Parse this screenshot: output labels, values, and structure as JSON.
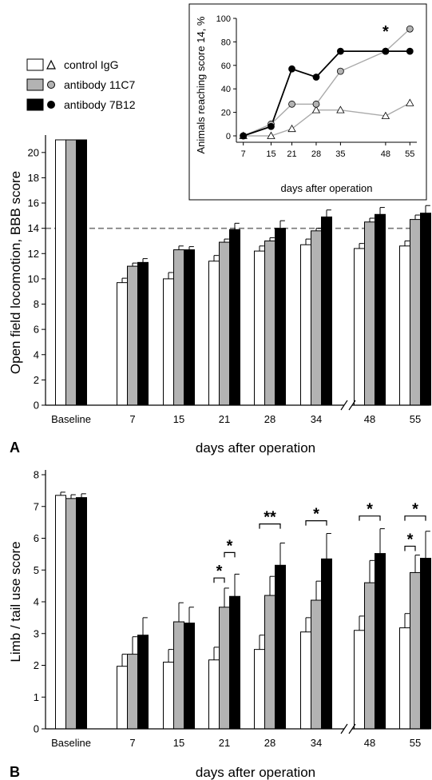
{
  "legend": {
    "items": [
      {
        "label": "control IgG",
        "fill": "#ffffff",
        "marker": "triangle"
      },
      {
        "label": "antibody 11C7",
        "fill": "#b3b3b3",
        "marker": "circle"
      },
      {
        "label": "antibody 7B12",
        "fill": "#000000",
        "marker": "circle"
      }
    ]
  },
  "chart_data": [
    {
      "id": "A",
      "panel_label": "A",
      "type": "bar",
      "ylabel": "Open field locomotion, BBB score",
      "xlabel": "days after operation",
      "ylim": [
        0,
        21
      ],
      "yticks": [
        0,
        2,
        4,
        6,
        8,
        10,
        12,
        14,
        16,
        18,
        20
      ],
      "categories": [
        "Baseline",
        "7",
        "15",
        "21",
        "28",
        "34",
        "48",
        "55"
      ],
      "axis_break_between": [
        "34",
        "48"
      ],
      "reference_line": 14,
      "series": [
        {
          "name": "control IgG",
          "values": [
            21.0,
            9.7,
            10.0,
            11.4,
            12.2,
            12.7,
            12.4,
            12.6
          ],
          "errors": [
            0,
            0.35,
            0.5,
            0.45,
            0.4,
            0.45,
            0.4,
            0.4
          ]
        },
        {
          "name": "antibody 11C7",
          "values": [
            21.0,
            11.0,
            12.3,
            12.9,
            13.0,
            13.8,
            14.5,
            14.7
          ],
          "errors": [
            0,
            0.25,
            0.3,
            0.25,
            0.25,
            0.2,
            0.3,
            0.35
          ]
        },
        {
          "name": "antibody 7B12",
          "values": [
            21.0,
            11.3,
            12.3,
            13.9,
            14.0,
            14.9,
            15.1,
            15.2
          ],
          "errors": [
            0,
            0.3,
            0.25,
            0.5,
            0.6,
            0.55,
            0.55,
            0.6
          ]
        }
      ]
    },
    {
      "id": "A-inset",
      "type": "line",
      "ylabel": "Animals reaching score 14, %",
      "xlabel": "days after operation",
      "ylim": [
        0,
        100
      ],
      "yticks": [
        0,
        20,
        40,
        60,
        80,
        100
      ],
      "x": [
        7,
        15,
        21,
        28,
        35,
        48,
        55
      ],
      "series": [
        {
          "name": "control IgG",
          "values": [
            0,
            0,
            6,
            22,
            22,
            17,
            28
          ]
        },
        {
          "name": "antibody 11C7",
          "values": [
            0,
            10,
            27,
            27,
            55,
            72,
            91
          ]
        },
        {
          "name": "antibody 7B12",
          "values": [
            0,
            8,
            57,
            50,
            72,
            72,
            72
          ]
        }
      ],
      "annotations": [
        {
          "text": "*",
          "x": 48
        }
      ]
    },
    {
      "id": "B",
      "panel_label": "B",
      "type": "bar",
      "ylabel": "Limb / tail use score",
      "xlabel": "days after operation",
      "ylim": [
        0,
        8
      ],
      "yticks": [
        0,
        1,
        2,
        3,
        4,
        5,
        6,
        7,
        8
      ],
      "categories": [
        "Baseline",
        "7",
        "15",
        "21",
        "28",
        "34",
        "48",
        "55"
      ],
      "axis_break_between": [
        "34",
        "48"
      ],
      "series": [
        {
          "name": "control IgG",
          "values": [
            7.35,
            1.97,
            2.1,
            2.17,
            2.5,
            3.05,
            3.1,
            3.18
          ],
          "errors": [
            0.1,
            0.38,
            0.4,
            0.4,
            0.45,
            0.45,
            0.45,
            0.45
          ]
        },
        {
          "name": "antibody 11C7",
          "values": [
            7.25,
            2.35,
            3.37,
            3.83,
            4.2,
            4.05,
            4.6,
            4.92
          ],
          "errors": [
            0.12,
            0.55,
            0.6,
            0.6,
            0.6,
            0.6,
            0.7,
            0.55
          ]
        },
        {
          "name": "antibody 7B12",
          "values": [
            7.28,
            2.95,
            3.33,
            4.17,
            5.15,
            5.35,
            5.52,
            5.37
          ],
          "errors": [
            0.12,
            0.55,
            0.5,
            0.7,
            0.7,
            0.8,
            0.78,
            0.85
          ]
        }
      ],
      "significance": [
        {
          "category": "21",
          "from": 1,
          "to": 2,
          "text": "*",
          "y": 5.55
        },
        {
          "category": "21",
          "from": 0,
          "to": 1,
          "text": "*",
          "y": 4.75
        },
        {
          "category": "28",
          "from": 0,
          "to": 2,
          "text": "**",
          "y": 6.45
        },
        {
          "category": "34",
          "from": 0,
          "to": 2,
          "text": "*",
          "y": 6.55
        },
        {
          "category": "48",
          "from": 0,
          "to": 2,
          "text": "*",
          "y": 6.7
        },
        {
          "category": "55",
          "from": 0,
          "to": 2,
          "text": "*",
          "y": 6.7
        },
        {
          "category": "55",
          "from": 0,
          "to": 1,
          "text": "*",
          "y": 5.75
        }
      ]
    }
  ]
}
